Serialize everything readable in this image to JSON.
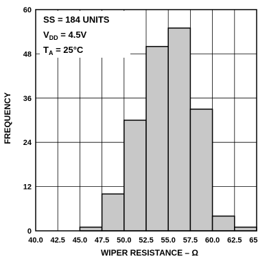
{
  "chart_data": {
    "type": "bar",
    "xlabel": "WIPER RESISTANCE – Ω",
    "ylabel": "FREQUENCY",
    "x_ticks": [
      "40.0",
      "42.5",
      "45.0",
      "47.5",
      "50.0",
      "52.5",
      "55.0",
      "57.5",
      "60.0",
      "62.5",
      "65.0"
    ],
    "y_ticks": [
      "0",
      "12",
      "24",
      "36",
      "48",
      "60"
    ],
    "ylim": [
      0,
      60
    ],
    "xlim": [
      40.0,
      65.0
    ],
    "grid": true,
    "bin_width": 2.5,
    "bins": [
      {
        "start": 42.5,
        "value": 0
      },
      {
        "start": 45.0,
        "value": 1
      },
      {
        "start": 47.5,
        "value": 10
      },
      {
        "start": 50.0,
        "value": 30
      },
      {
        "start": 52.5,
        "value": 50
      },
      {
        "start": 55.0,
        "value": 55
      },
      {
        "start": 57.5,
        "value": 33
      },
      {
        "start": 60.0,
        "value": 4
      },
      {
        "start": 62.5,
        "value": 1
      }
    ],
    "colors": {
      "bar": "#c8c8c8",
      "grid": "#000000"
    },
    "annotations": {
      "ss": "SS = 184 UNITS",
      "vdd_main": "V",
      "vdd_sub": "DD",
      "vdd_value": " = 4.5V",
      "ta_main": "T",
      "ta_sub": "A",
      "ta_value": " = 25°C"
    }
  }
}
